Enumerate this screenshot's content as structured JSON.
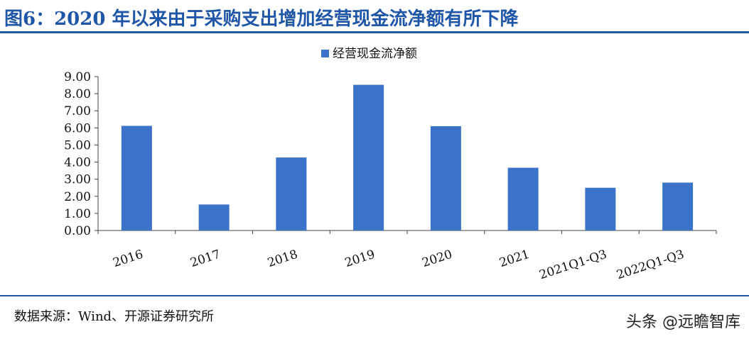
{
  "figure": {
    "title": "图6：2020 年以来由于采购支出增加经营现金流净额有所下降",
    "source": "数据来源：Wind、开源证券研究所",
    "watermark": "头条 @远瞻智库"
  },
  "colors": {
    "title": "#1f56a8",
    "bar": "#3a73c9",
    "axis": "#444444"
  },
  "chart_data": {
    "type": "bar",
    "title": "",
    "xlabel": "",
    "ylabel": "",
    "categories": [
      "2016",
      "2017",
      "2018",
      "2019",
      "2020",
      "2021",
      "2021Q1-Q3",
      "2022Q1-Q3"
    ],
    "series": [
      {
        "name": "经营现金流净额",
        "values": [
          6.12,
          1.52,
          4.27,
          8.52,
          6.1,
          3.67,
          2.5,
          2.8
        ]
      }
    ],
    "ylim": [
      0,
      9
    ],
    "yticks": [
      "0.00",
      "1.00",
      "2.00",
      "3.00",
      "4.00",
      "5.00",
      "6.00",
      "7.00",
      "8.00",
      "9.00"
    ],
    "legend_position": "top",
    "grid": false
  }
}
